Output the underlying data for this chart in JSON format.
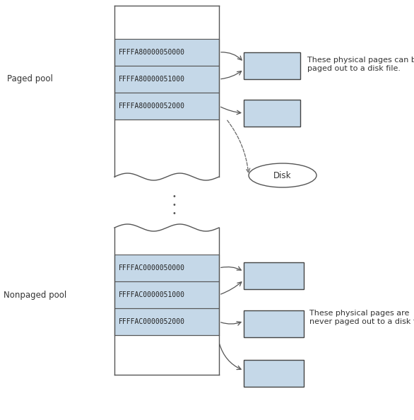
{
  "bg_color": "#ffffff",
  "box_fill": "#c5d8e8",
  "box_edge": "#555555",
  "paged_label": "Paged pool",
  "nonpaged_label": "Nonpaged pool",
  "paged_rows": [
    "FFFFA80000050000",
    "FFFFA80000051000",
    "FFFFA80000052000"
  ],
  "nonpaged_rows": [
    "FFFFAC0000050000",
    "FFFFAC0000051000",
    "FFFFAC0000052000"
  ],
  "disk_label": "Disk",
  "annot_paged": "These physical pages can be\npaged out to a disk file.",
  "annot_nonpaged": "These physical pages are\nnever paged out to a disk file.",
  "font_size_label": 8.5,
  "font_size_row": 7.0,
  "font_size_annot": 8.0,
  "font_size_disk": 8.5
}
